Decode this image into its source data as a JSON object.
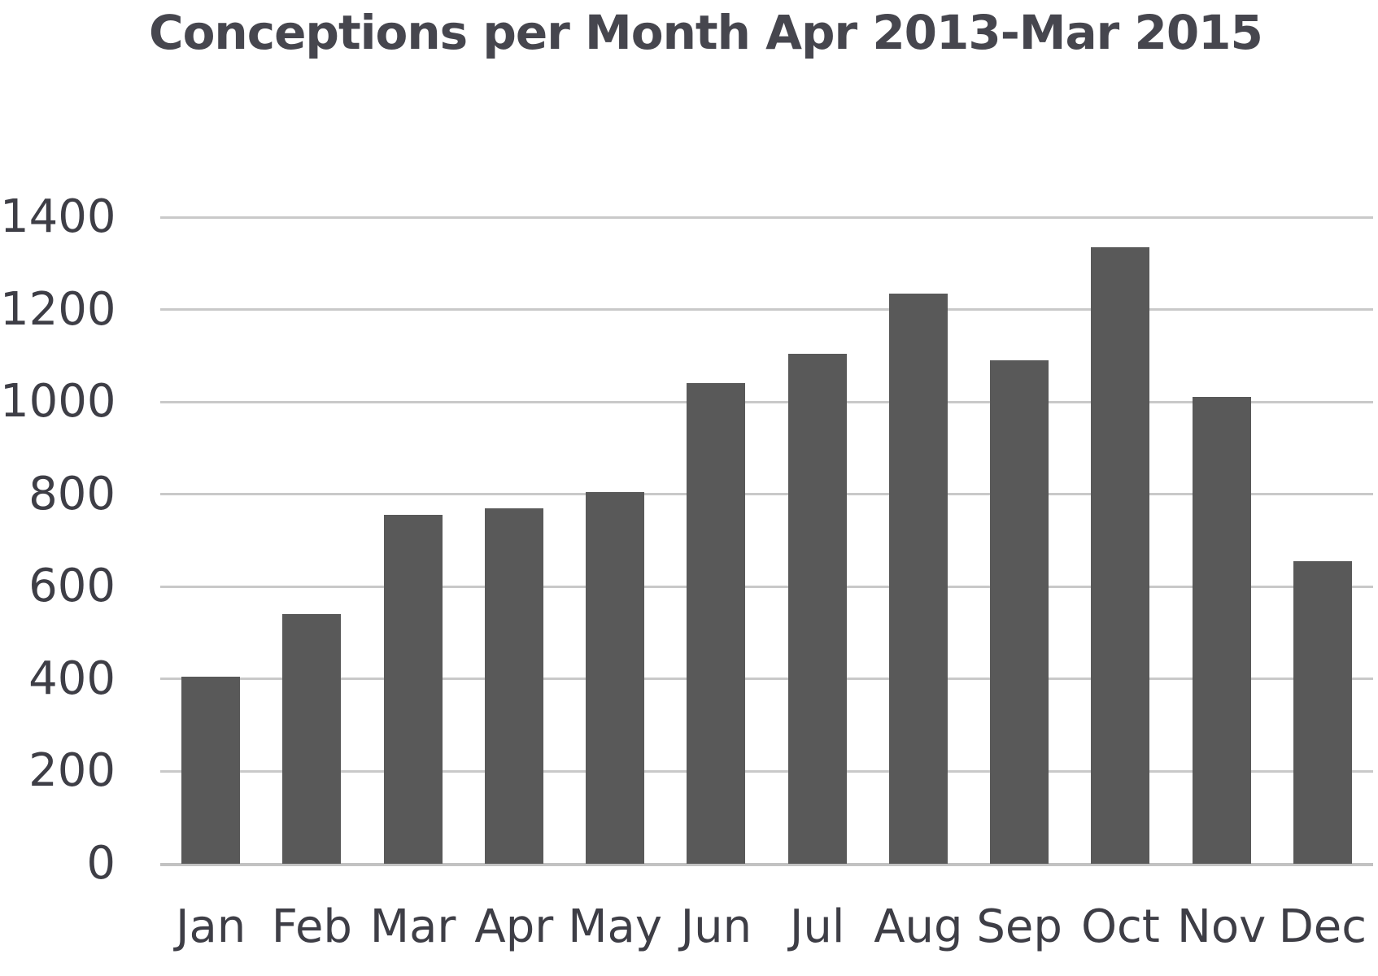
{
  "chart_data": {
    "type": "bar",
    "title": "Conceptions per Month Apr 2013-Mar 2015",
    "categories": [
      "Jan",
      "Feb",
      "Mar",
      "Apr",
      "May",
      "Jun",
      "Jul",
      "Aug",
      "Sep",
      "Oct",
      "Nov",
      "Dec"
    ],
    "values": [
      405,
      540,
      755,
      770,
      805,
      1040,
      1105,
      1235,
      1090,
      1335,
      1010,
      655
    ],
    "xlabel": "",
    "ylabel": "",
    "ylim": [
      0,
      1400
    ],
    "ytick_step": 200,
    "ytick_labels": [
      "0",
      "200",
      "400",
      "600",
      "800",
      "1000",
      "1200",
      "1400"
    ],
    "grid": true,
    "legend": false,
    "series_name": "Conceptions",
    "colors": {
      "bar": "#595959",
      "gridline": "#c9c9c9",
      "title_text": "#46464e",
      "axis_text": "#3e3e46",
      "background": "#ffffff"
    }
  }
}
